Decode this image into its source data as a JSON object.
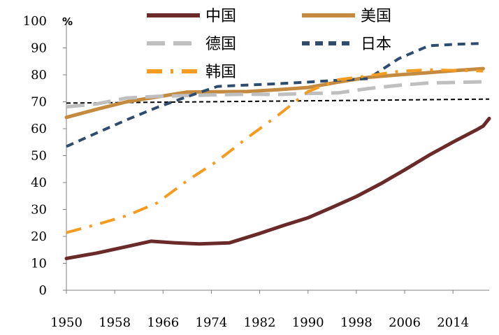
{
  "chart_data": {
    "type": "line",
    "title": "",
    "xlabel": "",
    "ylabel": "%",
    "xlim": [
      1950,
      2020
    ],
    "ylim": [
      0,
      100
    ],
    "x_ticks": [
      "1950",
      "1958",
      "1966",
      "1974",
      "1982",
      "1990",
      "1998",
      "2006",
      "2014"
    ],
    "y_ticks": [
      "0",
      "10",
      "20",
      "30",
      "40",
      "50",
      "60",
      "70",
      "80",
      "90",
      "100"
    ],
    "grid": false,
    "legend_position": "top",
    "series": [
      {
        "name": "中国",
        "color": "#6b2a2a",
        "style": "solid",
        "x": [
          1950,
          1955,
          1960,
          1964,
          1968,
          1972,
          1977,
          1982,
          1986,
          1990,
          1994,
          1998,
          2002,
          2006,
          2010,
          2014,
          2018,
          2019,
          2020
        ],
        "y": [
          11.8,
          13.8,
          16.2,
          18.2,
          17.6,
          17.2,
          17.6,
          21.1,
          24.1,
          26.9,
          30.8,
          34.8,
          39.5,
          44.7,
          50.1,
          55.0,
          59.7,
          61.0,
          63.8
        ]
      },
      {
        "name": "美国",
        "color": "#c48a3f",
        "style": "solid",
        "x": [
          1950,
          1955,
          1960,
          1965,
          1970,
          1975,
          1980,
          1985,
          1990,
          1995,
          2000,
          2005,
          2010,
          2015,
          2019
        ],
        "y": [
          64.2,
          67.2,
          70.0,
          71.8,
          73.6,
          73.7,
          73.8,
          74.5,
          75.3,
          77.3,
          79.1,
          80.0,
          80.8,
          81.7,
          82.3
        ]
      },
      {
        "name": "德国",
        "color": "#bfbfbf",
        "style": "longdash",
        "x": [
          1950,
          1955,
          1960,
          1965,
          1970,
          1975,
          1980,
          1985,
          1990,
          1995,
          2000,
          2005,
          2010,
          2015,
          2019
        ],
        "y": [
          68.1,
          69.2,
          71.4,
          72.0,
          72.3,
          72.6,
          72.8,
          72.7,
          73.1,
          73.3,
          74.9,
          76.1,
          77.0,
          77.2,
          77.4
        ]
      },
      {
        "name": "日本",
        "color": "#2e4d6e",
        "style": "dash",
        "x": [
          1950,
          1955,
          1960,
          1965,
          1970,
          1975,
          1980,
          1985,
          1990,
          1995,
          2000,
          2005,
          2010,
          2015,
          2019
        ],
        "y": [
          53.4,
          58.4,
          63.3,
          67.9,
          71.9,
          75.7,
          76.2,
          76.7,
          77.3,
          78.0,
          78.6,
          86.0,
          90.8,
          91.4,
          91.7
        ]
      },
      {
        "name": "韩国",
        "color": "#f39c1f",
        "style": "dashdot",
        "x": [
          1950,
          1955,
          1960,
          1965,
          1970,
          1975,
          1980,
          1985,
          1990,
          1995,
          2000,
          2005,
          2010,
          2015,
          2019
        ],
        "y": [
          21.4,
          24.4,
          27.7,
          32.4,
          40.7,
          48.0,
          56.7,
          64.9,
          73.8,
          78.2,
          79.6,
          81.3,
          81.9,
          81.6,
          81.4
        ]
      },
      {
        "name": "",
        "color": "#000000",
        "style": "shortdash",
        "x": [
          1950,
          2020
        ],
        "y": [
          69.5,
          71.0
        ]
      }
    ]
  }
}
